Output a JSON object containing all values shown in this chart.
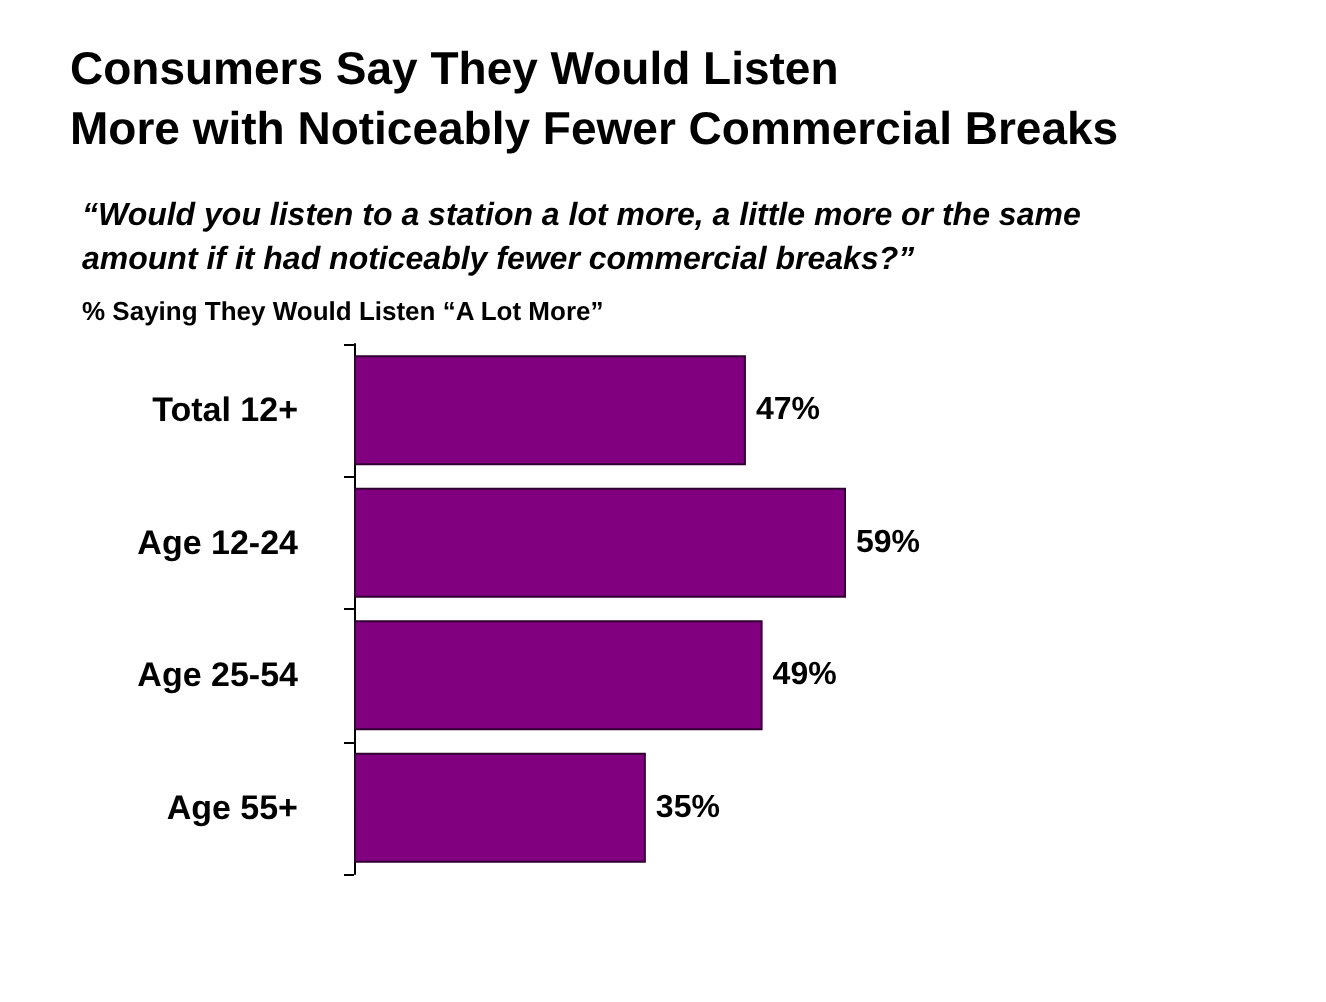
{
  "chart_data": {
    "type": "bar",
    "orientation": "horizontal",
    "title": "Consumers Say They Would Listen\nMore with Noticeably Fewer Commercial Breaks",
    "subtitle": "“Would you listen to a station a lot more, a little more or the same\namount if it had noticeably fewer commercial breaks?”",
    "xlabel": "% Saying They Would Listen “A Lot More”",
    "categories": [
      "Total 12+",
      "Age 12-24",
      "Age 25-54",
      "Age 55+"
    ],
    "values": [
      47,
      59,
      49,
      35
    ],
    "value_labels": [
      "47%",
      "59%",
      "49%",
      "35%"
    ],
    "color": "#800080"
  }
}
